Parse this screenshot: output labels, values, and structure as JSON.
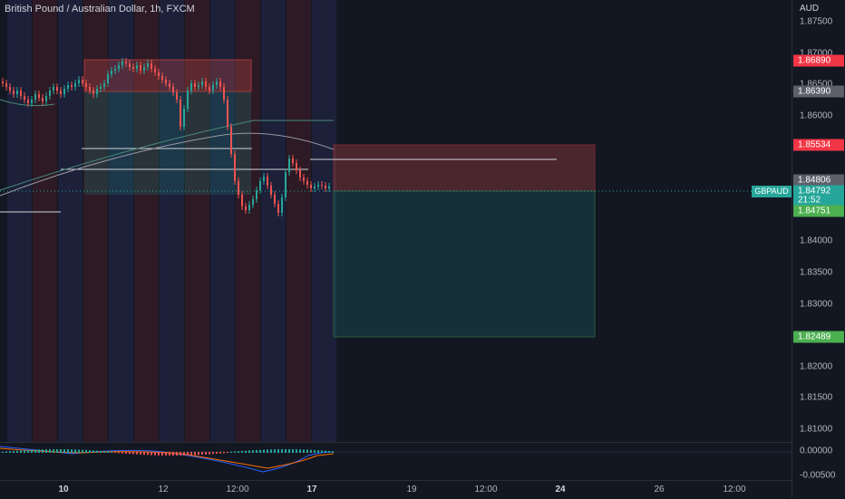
{
  "header": {
    "symbol_title": "British Pound / Australian Dollar, 1h, FXCM"
  },
  "price_scale": {
    "currency": "AUD",
    "ticks": [
      "1.87500",
      "1.87000",
      "1.86500",
      "1.86000",
      "1.85500",
      "1.85000",
      "1.84500",
      "1.84000",
      "1.83500",
      "1.83000",
      "1.82500",
      "1.82000",
      "1.81500",
      "1.81000"
    ],
    "osc_ticks": [
      "0.00000",
      "-0.00500"
    ]
  },
  "labels": {
    "entry_top": "1.86890",
    "level_2": "1.86390",
    "stop": "1.85534",
    "level_4": "1.84806",
    "current_price": "1.84792",
    "countdown": "21:52",
    "level_6": "1.84751",
    "target": "1.82489",
    "symbol_tag": "GBPAUD"
  },
  "time_axis": {
    "ticks": [
      {
        "label": "10",
        "bold": true
      },
      {
        "label": "12",
        "bold": false
      },
      {
        "label": "12:00",
        "bold": false
      },
      {
        "label": "17",
        "bold": true
      },
      {
        "label": "19",
        "bold": false
      },
      {
        "label": "12:00",
        "bold": false
      },
      {
        "label": "24",
        "bold": true
      },
      {
        "label": "26",
        "bold": false
      },
      {
        "label": "12:00",
        "bold": false
      }
    ]
  },
  "colors": {
    "background": "#131722",
    "bull": "#26a69a",
    "bear": "#ef5350",
    "stop_zone": "#4d2a30",
    "target_zone": "#1f3a2c",
    "label_red": "#f23645",
    "label_gray": "#5d606b",
    "label_green": "#4caf50",
    "label_teal": "#26a69a"
  }
}
